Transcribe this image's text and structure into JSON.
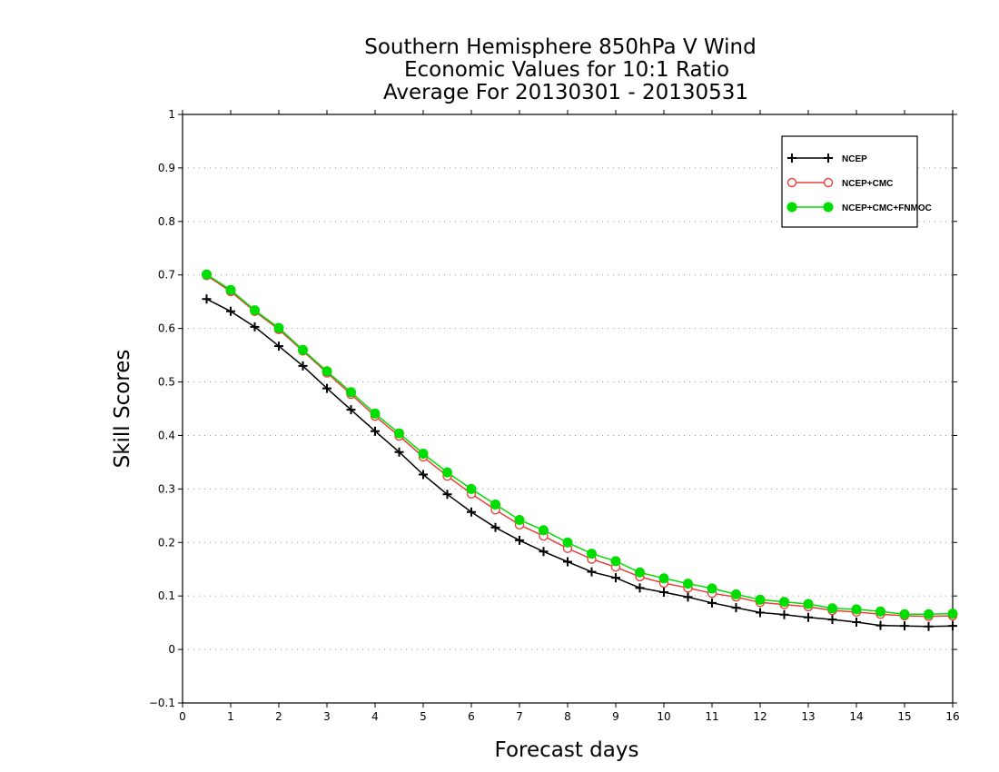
{
  "chart_data": {
    "type": "line",
    "title": [
      "Southern Hemisphere 850hPa V Wind",
      "Economic Values for 10:1 Ratio",
      "Average For 20130301 - 20130531"
    ],
    "xlabel": "Forecast days",
    "ylabel": "Skill Scores",
    "xlim": [
      0,
      16
    ],
    "ylim": [
      -0.1,
      1
    ],
    "x_ticks": [
      "0",
      "1",
      "2",
      "3",
      "4",
      "5",
      "6",
      "7",
      "8",
      "9",
      "10",
      "11",
      "12",
      "13",
      "14",
      "15",
      "16"
    ],
    "y_ticks": [
      "-0.1",
      "0",
      "0.1",
      "0.2",
      "0.3",
      "0.4",
      "0.5",
      "0.6",
      "0.7",
      "0.8",
      "0.9",
      "1"
    ],
    "grid": "horizontal dotted",
    "legend_position": "top-right",
    "x": [
      0.5,
      1,
      1.5,
      2,
      2.5,
      3,
      3.5,
      4,
      4.5,
      5,
      5.5,
      6,
      6.5,
      7,
      7.5,
      8,
      8.5,
      9,
      9.5,
      10,
      10.5,
      11,
      11.5,
      12,
      12.5,
      13,
      13.5,
      14,
      14.5,
      15,
      15.5,
      16
    ],
    "series": [
      {
        "name": "NCEP",
        "color": "#000000",
        "marker": "plus",
        "values": [
          0.655,
          0.632,
          0.603,
          0.567,
          0.53,
          0.488,
          0.448,
          0.408,
          0.369,
          0.327,
          0.29,
          0.257,
          0.228,
          0.204,
          0.183,
          0.164,
          0.145,
          0.134,
          0.115,
          0.107,
          0.098,
          0.087,
          0.078,
          0.069,
          0.065,
          0.06,
          0.056,
          0.051,
          0.045,
          0.044,
          0.043,
          0.044
        ]
      },
      {
        "name": "NCEP+CMC",
        "color": "#e8413c",
        "marker": "open-circle",
        "values": [
          0.699,
          0.669,
          0.632,
          0.598,
          0.558,
          0.517,
          0.477,
          0.436,
          0.399,
          0.36,
          0.324,
          0.291,
          0.261,
          0.233,
          0.212,
          0.189,
          0.169,
          0.154,
          0.136,
          0.124,
          0.115,
          0.105,
          0.098,
          0.088,
          0.084,
          0.08,
          0.073,
          0.07,
          0.066,
          0.063,
          0.062,
          0.063
        ]
      },
      {
        "name": "NCEP+CMC+FNMOC",
        "color": "#00dd00",
        "marker": "filled-circle",
        "values": [
          0.701,
          0.672,
          0.634,
          0.601,
          0.56,
          0.52,
          0.481,
          0.441,
          0.404,
          0.366,
          0.331,
          0.3,
          0.271,
          0.242,
          0.223,
          0.2,
          0.179,
          0.165,
          0.144,
          0.133,
          0.123,
          0.114,
          0.103,
          0.093,
          0.089,
          0.085,
          0.077,
          0.075,
          0.071,
          0.066,
          0.066,
          0.067
        ]
      }
    ]
  }
}
